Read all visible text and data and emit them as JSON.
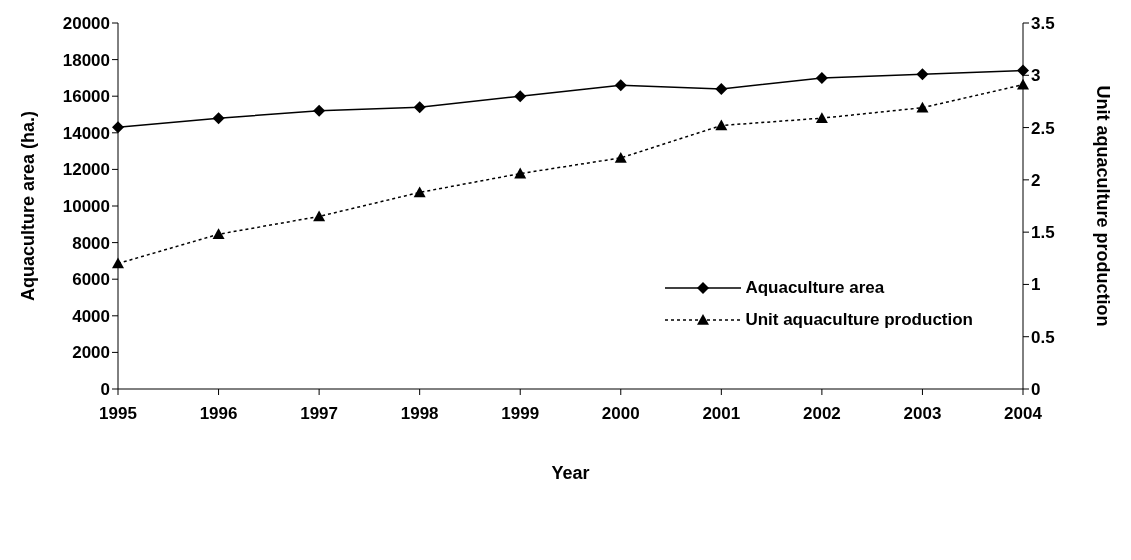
{
  "chart_data": {
    "type": "line",
    "xlabel": "Year",
    "ylabel": "Aquaculture area (ha.)",
    "y2label": "Unit aquaculture production",
    "categories": [
      "1995",
      "1996",
      "1997",
      "1998",
      "1999",
      "2000",
      "2001",
      "2002",
      "2003",
      "2004"
    ],
    "series": [
      {
        "name": "Aquaculture area",
        "color": "#000000",
        "marker": "diamond",
        "line_style": "solid",
        "values": [
          14300,
          14800,
          15200,
          15400,
          16000,
          16600,
          16400,
          17000,
          17200,
          17400
        ]
      },
      {
        "name": "Unit aquaculture production",
        "color": "#000000",
        "marker": "triangle",
        "line_style": "dotted",
        "axis": "y2",
        "values": [
          1.2,
          1.48,
          1.65,
          1.88,
          2.06,
          2.21,
          2.52,
          2.59,
          2.69,
          2.91
        ]
      }
    ],
    "ylim": [
      0,
      20000
    ],
    "yticks": [
      0,
      2000,
      4000,
      6000,
      8000,
      10000,
      12000,
      14000,
      16000,
      18000,
      20000
    ],
    "y2lim": [
      0,
      3.5
    ],
    "y2ticks": [
      0,
      0.5,
      1,
      1.5,
      2,
      2.5,
      3,
      3.5
    ],
    "grid": false,
    "legend": "right"
  }
}
